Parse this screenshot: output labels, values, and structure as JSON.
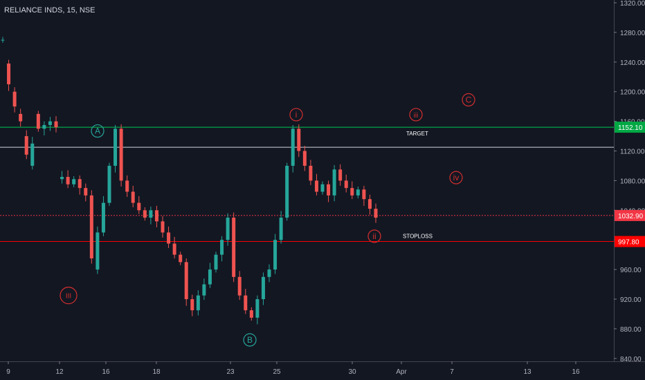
{
  "chart_data": {
    "type": "candlestick",
    "title": "RELIANCE INDS, 15, NSE",
    "y_ticks": [
      1320,
      1280,
      1240,
      1200,
      1160,
      1120,
      1080,
      1040,
      1000,
      960,
      920,
      880,
      840
    ],
    "y_tick_labels": [
      "1320.00",
      "1280.00",
      "1240.00",
      "1200.00",
      "1160.00",
      "1120.00",
      "1080.00",
      "1040.00",
      "1000.00",
      "960.00",
      "920.00",
      "880.00",
      "840.00"
    ],
    "x_ticks": [
      "9",
      "12",
      "16",
      "18",
      "23",
      "25",
      "30",
      "Apr",
      "7",
      "13",
      "16"
    ],
    "ylim": [
      832,
      1328
    ],
    "grid": false,
    "horizontal_lines": [
      {
        "label": "TARGET",
        "value": 1152.1,
        "value_label": "1152.10",
        "color": "#00c853"
      },
      {
        "value": 1125,
        "color": "#d1d4dc"
      },
      {
        "value": 1032.9,
        "value_label": "1032.90",
        "color": "#f23645",
        "style": "dotted"
      },
      {
        "label": "STOPLOSS",
        "value": 997.8,
        "value_label": "997.80",
        "color": "#ff0000"
      }
    ],
    "wave_labels": [
      {
        "text": "A",
        "value": 1147,
        "color": "#26a69a"
      },
      {
        "text": "B",
        "value": 865,
        "color": "#26a69a"
      },
      {
        "text": "III",
        "value": 925,
        "color": "#d32f2f"
      },
      {
        "text": "i",
        "value": 1169,
        "color": "#d32f2f"
      },
      {
        "text": "ii",
        "value": 1005,
        "color": "#d32f2f"
      },
      {
        "text": "iii",
        "value": 1169,
        "color": "#d32f2f"
      },
      {
        "text": "iv",
        "value": 1084,
        "color": "#d32f2f"
      },
      {
        "text": "C",
        "value": 1189,
        "color": "#d32f2f"
      }
    ],
    "price_path": [
      [
        1270,
        1270
      ],
      [
        1238,
        1210
      ],
      [
        1200,
        1180
      ],
      [
        1170,
        1160
      ],
      [
        1140,
        1115
      ],
      [
        1100,
        1130
      ],
      [
        1170,
        1150
      ],
      [
        1150,
        1155
      ],
      [
        1155,
        1160
      ],
      [
        1160,
        1152
      ],
      [
        1082,
        1085
      ],
      [
        1085,
        1075
      ],
      [
        1075,
        1082
      ],
      [
        1082,
        1070
      ],
      [
        1070,
        1060
      ],
      [
        1060,
        975
      ],
      [
        960,
        1010
      ],
      [
        1010,
        1050
      ],
      [
        1050,
        1100
      ],
      [
        1100,
        1150
      ],
      [
        1150,
        1080
      ],
      [
        1080,
        1065
      ],
      [
        1065,
        1050
      ],
      [
        1050,
        1040
      ],
      [
        1040,
        1030
      ],
      [
        1030,
        1040
      ],
      [
        1040,
        1025
      ],
      [
        1025,
        1010
      ],
      [
        1010,
        995
      ],
      [
        995,
        980
      ],
      [
        980,
        970
      ],
      [
        970,
        920
      ],
      [
        920,
        905
      ],
      [
        905,
        925
      ],
      [
        925,
        940
      ],
      [
        940,
        960
      ],
      [
        960,
        980
      ],
      [
        980,
        1000
      ],
      [
        1000,
        1030
      ],
      [
        1030,
        950
      ],
      [
        950,
        925
      ],
      [
        925,
        905
      ],
      [
        905,
        895
      ],
      [
        895,
        920
      ],
      [
        920,
        950
      ],
      [
        950,
        960
      ],
      [
        960,
        1000
      ],
      [
        1000,
        1030
      ],
      [
        1030,
        1100
      ],
      [
        1100,
        1150
      ],
      [
        1150,
        1120
      ],
      [
        1120,
        1100
      ],
      [
        1100,
        1080
      ],
      [
        1080,
        1065
      ],
      [
        1065,
        1075
      ],
      [
        1075,
        1060
      ],
      [
        1060,
        1095
      ],
      [
        1095,
        1080
      ],
      [
        1080,
        1070
      ],
      [
        1070,
        1060
      ],
      [
        1060,
        1068
      ],
      [
        1068,
        1055
      ],
      [
        1055,
        1042
      ],
      [
        1042,
        1030
      ]
    ]
  },
  "labels": {
    "target": "TARGET",
    "stoploss": "STOPLOSS"
  }
}
